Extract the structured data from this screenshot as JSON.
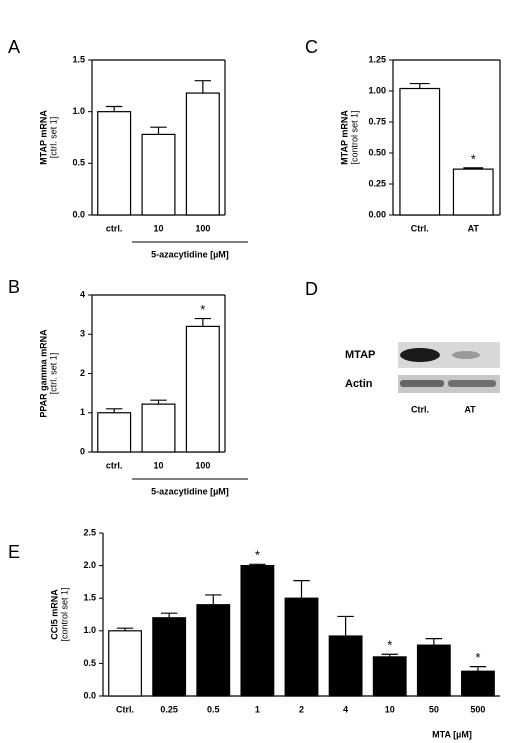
{
  "chart_data": [
    {
      "type": "bar",
      "label": "A",
      "ylabel": "MTAP mRNA",
      "ylabel_unit": "[ctrl. set 1]",
      "categories": [
        "ctrl.",
        "10",
        "100"
      ],
      "values": [
        1.0,
        0.78,
        1.18
      ],
      "errors": [
        0.05,
        0.07,
        0.12
      ],
      "color": "#ffffff",
      "significance": [
        null,
        null,
        null
      ],
      "group_label": "5-azacytidine [µM]",
      "ylim": [
        0,
        1.5
      ],
      "yticks": [
        {
          "value": 0,
          "label": "0.0"
        },
        {
          "value": 0.5,
          "label": "0.5"
        },
        {
          "value": 1,
          "label": "1.0"
        },
        {
          "value": 1.5,
          "label": "1.5"
        }
      ],
      "frame": true
    },
    {
      "type": "bar",
      "label": "C",
      "ylabel": "MTAP mRNA",
      "ylabel_unit": "[control set 1]",
      "categories": [
        "Ctrl.",
        "AT"
      ],
      "values": [
        1.02,
        0.37
      ],
      "errors": [
        0.04,
        0.01
      ],
      "color": "#ffffff",
      "significance": [
        null,
        "*"
      ],
      "ylim": [
        0,
        1.25
      ],
      "yticks": [
        {
          "value": 0,
          "label": "0.00"
        },
        {
          "value": 0.25,
          "label": "0.25"
        },
        {
          "value": 0.5,
          "label": "0.50"
        },
        {
          "value": 0.75,
          "label": "0.75"
        },
        {
          "value": 1,
          "label": "1.00"
        },
        {
          "value": 1.25,
          "label": "1.25"
        }
      ],
      "frame": true
    },
    {
      "type": "bar",
      "label": "B",
      "ylabel": "PPAR gamma mRNA",
      "ylabel_unit": "[ctrl. set 1]",
      "categories": [
        "ctrl.",
        "10",
        "100"
      ],
      "values": [
        1.0,
        1.22,
        3.2
      ],
      "errors": [
        0.1,
        0.1,
        0.2
      ],
      "color": "#ffffff",
      "significance": [
        null,
        null,
        "*"
      ],
      "group_label": "5-azacytidine [µM]",
      "ylim": [
        0,
        4
      ],
      "yticks": [
        0,
        1,
        2,
        3,
        4
      ],
      "frame": true
    },
    {
      "type": "bar",
      "label": "E",
      "ylabel": "CCl5 mRNA",
      "ylabel_unit": "[control set 1]",
      "categories": [
        "Ctrl.",
        "0.25",
        "0.5",
        "1",
        "2",
        "4",
        "10",
        "50",
        "500"
      ],
      "values": [
        1.0,
        1.2,
        1.4,
        2.0,
        1.5,
        0.92,
        0.6,
        0.78,
        0.38
      ],
      "errors": [
        0.04,
        0.07,
        0.15,
        0.02,
        0.27,
        0.3,
        0.04,
        0.1,
        0.07
      ],
      "colors": [
        "#ffffff",
        "#000000",
        "#000000",
        "#000000",
        "#000000",
        "#000000",
        "#000000",
        "#000000",
        "#000000"
      ],
      "significance": [
        null,
        null,
        null,
        "*",
        null,
        null,
        "*",
        null,
        "*"
      ],
      "xlabel": "MTA [µM]",
      "ylim": [
        0,
        2.5
      ],
      "yticks": [
        {
          "value": 0,
          "label": "0.0"
        },
        {
          "value": 0.5,
          "label": "0.5"
        },
        {
          "value": 1,
          "label": "1.0"
        },
        {
          "value": 1.5,
          "label": "1.5"
        },
        {
          "value": 2,
          "label": "2.0"
        },
        {
          "value": 2.5,
          "label": "2.5"
        }
      ],
      "frame": false
    }
  ],
  "blot": {
    "label": "D",
    "rows": [
      "MTAP",
      "Actin"
    ],
    "lanes": [
      "Ctrl.",
      "AT"
    ]
  }
}
